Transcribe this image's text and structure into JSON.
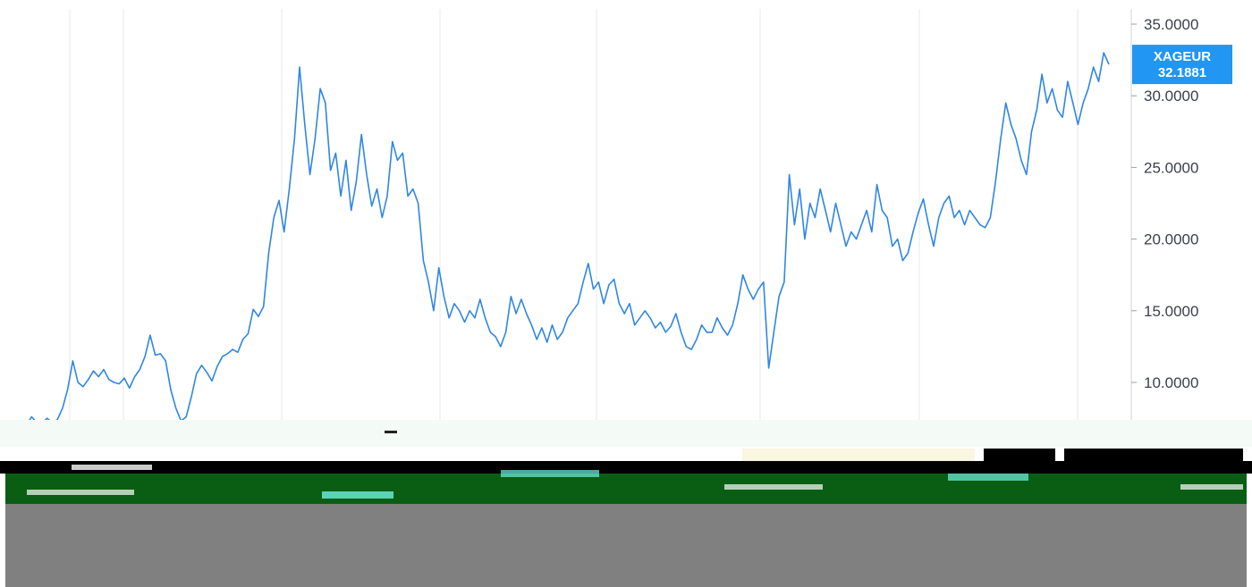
{
  "chart_data": {
    "type": "line",
    "ylim": [
      7.5,
      36
    ],
    "yticks": [
      {
        "value": 35,
        "label": "35.0000"
      },
      {
        "value": 30,
        "label": "30.0000"
      },
      {
        "value": 25,
        "label": "25.0000"
      },
      {
        "value": 20,
        "label": "20.0000"
      },
      {
        "value": 15,
        "label": "15.0000"
      },
      {
        "value": 10,
        "label": "10.0000"
      }
    ],
    "x_gridlines": 8,
    "grid": "vertical",
    "line_color": "#2f86e6",
    "series": [
      {
        "name": "XAGEUR",
        "values": [
          6.5,
          6.7,
          7.0,
          7.6,
          7.2,
          7.1,
          7.5,
          7.2,
          7.4,
          8.2,
          9.5,
          11.5,
          10.0,
          9.7,
          10.2,
          10.8,
          10.4,
          10.9,
          10.2,
          10.0,
          9.9,
          10.3,
          9.6,
          10.4,
          10.9,
          11.8,
          13.3,
          11.9,
          12.0,
          11.5,
          9.5,
          8.2,
          7.3,
          7.6,
          9.0,
          10.6,
          11.2,
          10.7,
          10.1,
          11.1,
          11.8,
          12.0,
          12.3,
          12.1,
          13.0,
          13.4,
          15.1,
          14.6,
          15.3,
          19.0,
          21.5,
          22.7,
          20.5,
          23.5,
          27.0,
          32.0,
          28.0,
          24.5,
          27.0,
          30.5,
          29.5,
          24.8,
          26.0,
          23.0,
          25.5,
          22.0,
          24.0,
          27.3,
          24.5,
          22.3,
          23.5,
          21.5,
          23.0,
          26.8,
          25.5,
          26.0,
          23.0,
          23.5,
          22.5,
          18.5,
          17.0,
          15.0,
          18.0,
          16.0,
          14.5,
          15.5,
          15.0,
          14.2,
          15.0,
          14.5,
          15.8,
          14.5,
          13.5,
          13.2,
          12.5,
          13.5,
          16.0,
          14.8,
          15.8,
          14.8,
          14.0,
          13.0,
          13.8,
          12.8,
          14.0,
          13.0,
          13.5,
          14.5,
          15.0,
          15.5,
          17.0,
          18.3,
          16.5,
          17.0,
          15.5,
          16.8,
          17.2,
          15.5,
          14.8,
          15.5,
          14.0,
          14.5,
          15.0,
          14.5,
          13.8,
          14.2,
          13.5,
          13.9,
          14.8,
          13.5,
          12.5,
          12.3,
          13.0,
          14.0,
          13.5,
          13.5,
          14.5,
          13.8,
          13.3,
          14.0,
          15.5,
          17.5,
          16.5,
          15.8,
          16.5,
          17.0,
          11.0,
          13.5,
          16.0,
          17.0,
          24.5,
          21.0,
          23.5,
          20.0,
          22.5,
          21.5,
          23.5,
          22.0,
          20.5,
          22.5,
          21.0,
          19.5,
          20.5,
          20.0,
          21.0,
          22.0,
          20.5,
          23.8,
          22.0,
          21.5,
          19.5,
          20.0,
          18.5,
          19.0,
          20.5,
          21.8,
          22.8,
          21.0,
          19.5,
          21.5,
          22.5,
          23.0,
          21.5,
          22.0,
          21.0,
          22.0,
          21.5,
          21.0,
          20.8,
          21.5,
          24.0,
          27.0,
          29.5,
          28.0,
          27.0,
          25.5,
          24.5,
          27.5,
          29.0,
          31.5,
          29.5,
          30.5,
          29.0,
          28.5,
          31.0,
          29.5,
          28.0,
          29.5,
          30.5,
          32.0,
          31.0,
          33.0,
          32.19
        ]
      }
    ],
    "price_badge": {
      "symbol": "XAGEUR",
      "value": "32.1881",
      "value_num": 32.1881,
      "color": "#2196f3"
    }
  }
}
